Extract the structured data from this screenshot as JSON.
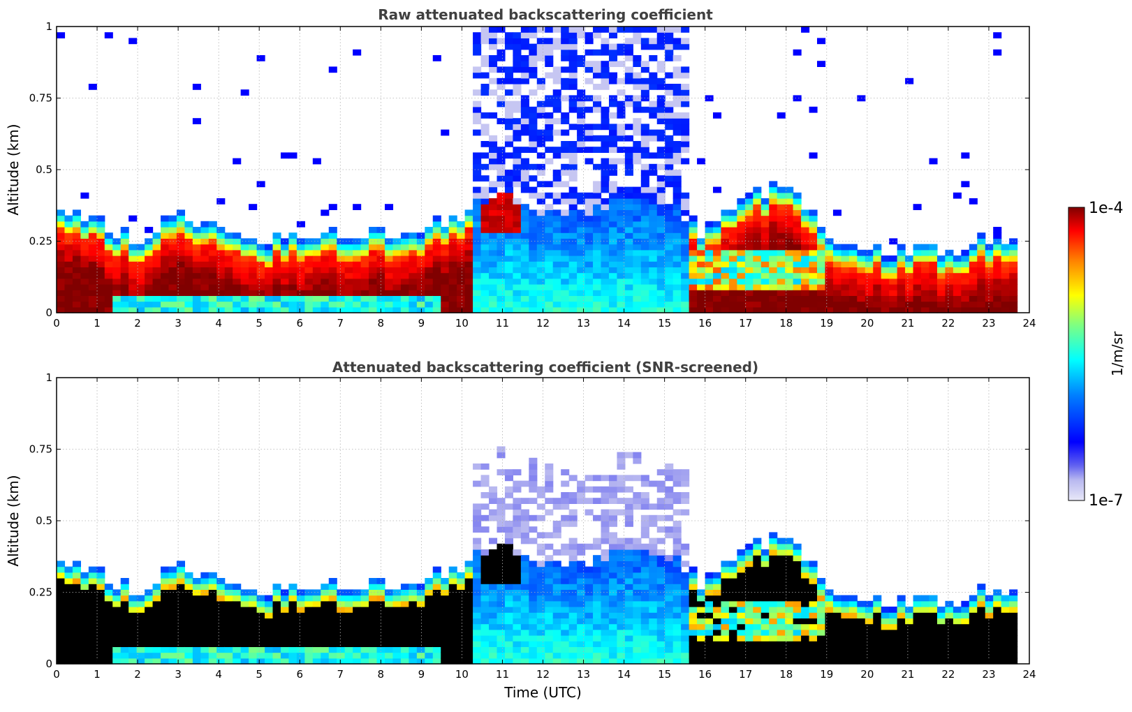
{
  "chart_data": [
    {
      "type": "heatmap",
      "title": "Raw attenuated backscattering coefficient",
      "xlabel": "",
      "ylabel": "Altitude (km)",
      "xlim": [
        0,
        24
      ],
      "ylim": [
        0,
        1
      ],
      "x_ticks": [
        "0",
        "1",
        "2",
        "3",
        "4",
        "5",
        "6",
        "7",
        "8",
        "9",
        "10",
        "11",
        "12",
        "13",
        "14",
        "15",
        "16",
        "17",
        "18",
        "19",
        "20",
        "21",
        "22",
        "23",
        "24"
      ],
      "y_ticks": [
        "0",
        "0.25",
        "0.5",
        "0.75",
        "1"
      ],
      "grid": true,
      "data_end_time": 23.7,
      "boundary_layer_top_km": [
        [
          0,
          0.37
        ],
        [
          1,
          0.31
        ],
        [
          2,
          0.26
        ],
        [
          3,
          0.34
        ],
        [
          4,
          0.31
        ],
        [
          5,
          0.26
        ],
        [
          6,
          0.26
        ],
        [
          7,
          0.27
        ],
        [
          8,
          0.28
        ],
        [
          9,
          0.3
        ],
        [
          10,
          0.35
        ],
        [
          11,
          0.41
        ],
        [
          12,
          0.36
        ],
        [
          13,
          0.36
        ],
        [
          14,
          0.4
        ],
        [
          15,
          0.38
        ],
        [
          16,
          0.28
        ],
        [
          17,
          0.42
        ],
        [
          18,
          0.44
        ],
        [
          19,
          0.28
        ],
        [
          20,
          0.22
        ],
        [
          21,
          0.22
        ],
        [
          22,
          0.22
        ],
        [
          23,
          0.25
        ],
        [
          23.7,
          0.25
        ]
      ],
      "noise_region_hours": [
        10.3,
        15.7
      ]
    },
    {
      "type": "heatmap",
      "title": "Attenuated backscattering coefficient (SNR-screened)",
      "xlabel": "Time (UTC)",
      "ylabel": "Altitude (km)",
      "xlim": [
        0,
        24
      ],
      "ylim": [
        0,
        1
      ],
      "x_ticks": [
        "0",
        "1",
        "2",
        "3",
        "4",
        "5",
        "6",
        "7",
        "8",
        "9",
        "10",
        "11",
        "12",
        "13",
        "14",
        "15",
        "16",
        "17",
        "18",
        "19",
        "20",
        "21",
        "22",
        "23",
        "24"
      ],
      "y_ticks": [
        "0",
        "0.25",
        "0.5",
        "0.75",
        "1"
      ],
      "grid": true,
      "data_end_time": 23.7,
      "screened_fill_color": "#000000"
    }
  ],
  "colorbar": {
    "max_label": "1e-4",
    "min_label": "1e-7",
    "unit_label": "1/m/sr",
    "scale": "log",
    "colormap": "jet"
  }
}
